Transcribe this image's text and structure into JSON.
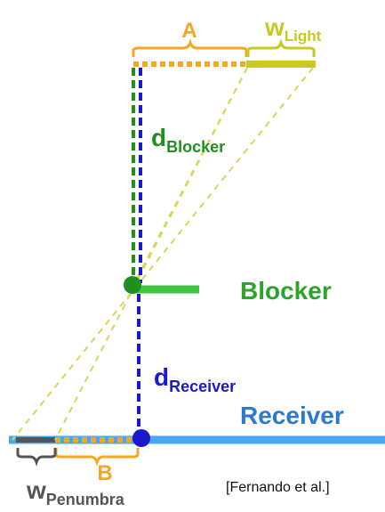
{
  "labels": {
    "a": "A",
    "b": "B",
    "w_light_main": "w",
    "w_light_sub": "Light",
    "d_blocker_main": "d",
    "d_blocker_sub": "Blocker",
    "d_receiver_main": "d",
    "d_receiver_sub": "Receiver",
    "w_penumbra_main": "w",
    "w_penumbra_sub": "Penumbra",
    "blocker": "Blocker",
    "receiver": "Receiver"
  },
  "citation": "[Fernando et al.]",
  "colors": {
    "orange": "#f5a623",
    "light_yellow": "#c8c81e",
    "yellow_dashed": "#d7d75a",
    "green": "#1f8f1f",
    "green_bar": "#3ec43e",
    "blocker_text": "#2aa52a",
    "blue": "#1a1acc",
    "receiver_text": "#2a7ad4",
    "receiver_bar": "#4aa8f0",
    "penumbra_bar": "#555555"
  }
}
